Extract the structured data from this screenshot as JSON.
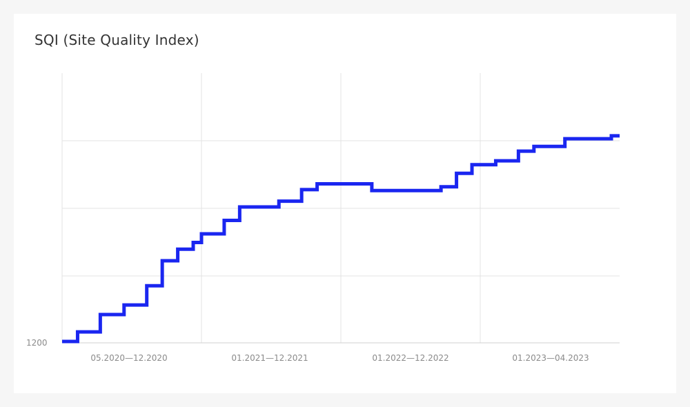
{
  "title": "SQI (Site Quality Index)",
  "chart_data": {
    "type": "line",
    "step": true,
    "title": "SQI (Site Quality Index)",
    "xlabel": "",
    "ylabel": "",
    "x_tick_labels": [
      "05.2020—12.2020",
      "01.2021—12.2021",
      "01.2022—12.2022",
      "01.2023—04.2023"
    ],
    "y_tick_labels": [
      "1200"
    ],
    "grid": true,
    "series": [
      {
        "color": "#1a26f0",
        "points": [
          [
            "2020-05-01",
            1200
          ],
          [
            "2020-06-01",
            1210
          ],
          [
            "2020-07-15",
            1228
          ],
          [
            "2020-09-01",
            1238
          ],
          [
            "2020-10-15",
            1258
          ],
          [
            "2020-11-15",
            1284
          ],
          [
            "2020-12-15",
            1296
          ],
          [
            "2021-01-15",
            1303
          ],
          [
            "2021-02-01",
            1312
          ],
          [
            "2021-03-15",
            1326
          ],
          [
            "2021-04-15",
            1340
          ],
          [
            "2021-07-01",
            1346
          ],
          [
            "2021-08-15",
            1358
          ],
          [
            "2021-09-15",
            1364
          ],
          [
            "2021-12-01",
            1364
          ],
          [
            "2022-01-01",
            1357
          ],
          [
            "2022-02-15",
            1357
          ],
          [
            "2022-05-15",
            1361
          ],
          [
            "2022-06-15",
            1375
          ],
          [
            "2022-07-15",
            1384
          ],
          [
            "2022-09-01",
            1388
          ],
          [
            "2022-10-15",
            1398
          ],
          [
            "2022-11-15",
            1403
          ],
          [
            "2023-01-15",
            1411
          ],
          [
            "2023-04-15",
            1414
          ]
        ]
      }
    ]
  }
}
